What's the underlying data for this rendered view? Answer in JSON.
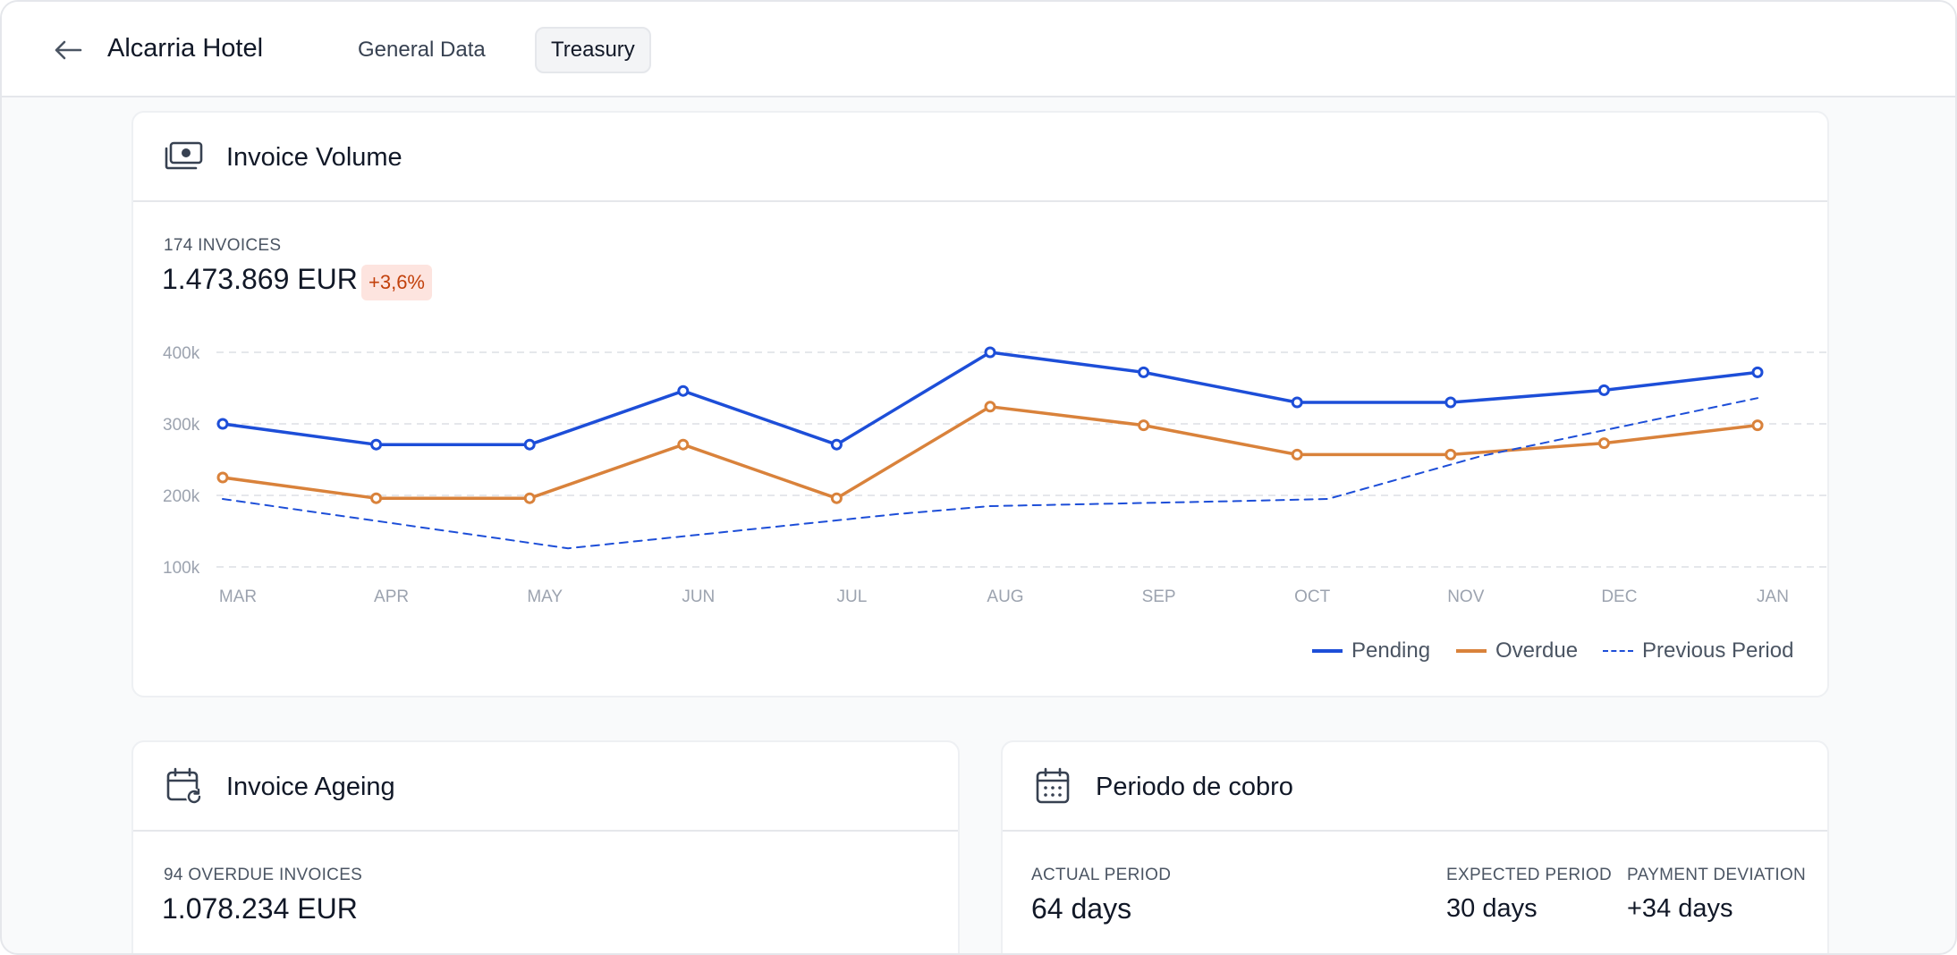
{
  "header": {
    "back_icon": "arrow-left-icon",
    "title": "Alcarria Hotel",
    "tabs": [
      {
        "label": "General Data",
        "active": false
      },
      {
        "label": "Treasury",
        "active": true
      }
    ]
  },
  "invoice_volume": {
    "title": "Invoice Volume",
    "icon": "cash-stack-icon",
    "count_label": "174 INVOICES",
    "total": "1.473.869 EUR",
    "delta": "+3,6%"
  },
  "chart_data": {
    "type": "line",
    "categories": [
      "MAR",
      "APR",
      "MAY",
      "JUN",
      "JUL",
      "AUG",
      "SEP",
      "OCT",
      "NOV",
      "DEC",
      "JAN"
    ],
    "y_ticks": [
      "100k",
      "200k",
      "300k",
      "400k"
    ],
    "ylim": [
      100000,
      400000
    ],
    "grid": true,
    "legend_position": "bottom-right",
    "series": [
      {
        "name": "Pending",
        "color": "#1d4ed8",
        "style": "solid",
        "markers": true,
        "values": [
          300000,
          271000,
          271000,
          346000,
          271000,
          400000,
          372000,
          330000,
          330000,
          347000,
          372000
        ]
      },
      {
        "name": "Overdue",
        "color": "#d9823b",
        "style": "solid",
        "markers": true,
        "values": [
          225000,
          196000,
          196000,
          271000,
          196000,
          324000,
          298000,
          257000,
          257000,
          273000,
          298000
        ]
      },
      {
        "name": "Previous Period",
        "color": "#1d4ed8",
        "style": "dashed",
        "markers": false,
        "x": [
          0,
          2.25,
          4.4,
          5,
          6.6,
          7.2,
          8.2,
          10
        ],
        "values": [
          195000,
          126000,
          174000,
          185000,
          192000,
          195000,
          255000,
          336000
        ]
      }
    ]
  },
  "invoice_ageing": {
    "title": "Invoice Ageing",
    "icon": "calendar-refresh-icon",
    "count_label": "94 OVERDUE INVOICES",
    "total": "1.078.234 EUR"
  },
  "collection_period": {
    "title": "Periodo de cobro",
    "icon": "calendar-grid-icon",
    "actual_label": "ACTUAL PERIOD",
    "actual_value": "64 days",
    "expected_label": "EXPECTED PERIOD",
    "expected_value": "30 days",
    "deviation_label": "PAYMENT DEVIATION",
    "deviation_value": "+34 days"
  }
}
